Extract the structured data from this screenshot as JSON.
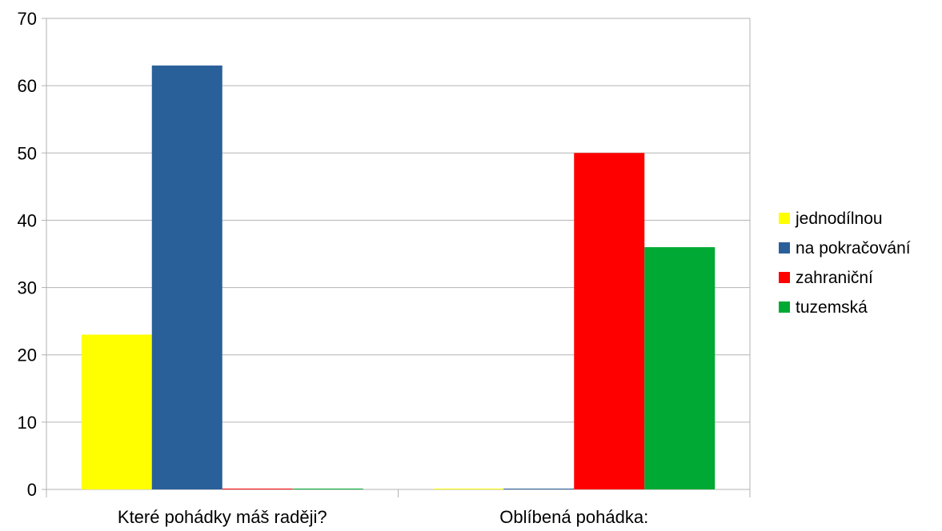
{
  "chart_data": {
    "type": "bar",
    "categories": [
      "Které pohádky máš raději?",
      "Oblíbená pohádka:"
    ],
    "series": [
      {
        "name": "jednodílnou",
        "values": [
          23,
          0
        ],
        "color": "#ffff00"
      },
      {
        "name": "na pokračování",
        "values": [
          63,
          0
        ],
        "color": "#2a6099"
      },
      {
        "name": "zahraniční",
        "values": [
          0,
          50
        ],
        "color": "#ff0000"
      },
      {
        "name": "tuzemská",
        "values": [
          0,
          36
        ],
        "color": "#00a933"
      }
    ],
    "yticks": [
      "0",
      "10",
      "20",
      "30",
      "40",
      "50",
      "60",
      "70"
    ],
    "ylim": [
      0,
      70
    ],
    "grid": true,
    "legend_position": "right",
    "title": "",
    "xlabel": "",
    "ylabel": ""
  }
}
